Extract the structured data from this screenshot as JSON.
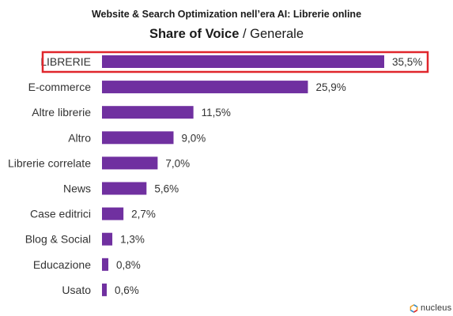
{
  "header": {
    "supertitle": "Website & Search Optimization nell’era AI: Librerie online",
    "title_bold": "Share of Voice",
    "title_separator": " / ",
    "title_light": "Generale"
  },
  "brand": {
    "logo_text": "nucleus"
  },
  "colors": {
    "bar": "#7030a0",
    "highlight_border": "#e0262c"
  },
  "chart_data": {
    "type": "bar",
    "orientation": "horizontal",
    "title": "Share of Voice / Generale",
    "categories": [
      "LIBRERIE",
      "E-commerce",
      "Altre librerie",
      "Altro",
      "Librerie correlate",
      "News",
      "Case editrici",
      "Blog & Social",
      "Educazione",
      "Usato"
    ],
    "values": [
      35.5,
      25.9,
      11.5,
      9.0,
      7.0,
      5.6,
      2.7,
      1.3,
      0.8,
      0.6
    ],
    "value_labels": [
      "35,5%",
      "25,9%",
      "11,5%",
      "9,0%",
      "7,0%",
      "5,6%",
      "2,7%",
      "1,3%",
      "0,8%",
      "0,6%"
    ],
    "unit": "%",
    "highlighted_category": "LIBRERIE",
    "xlim": [
      0,
      35.5
    ],
    "grid": false,
    "legend": "none"
  }
}
